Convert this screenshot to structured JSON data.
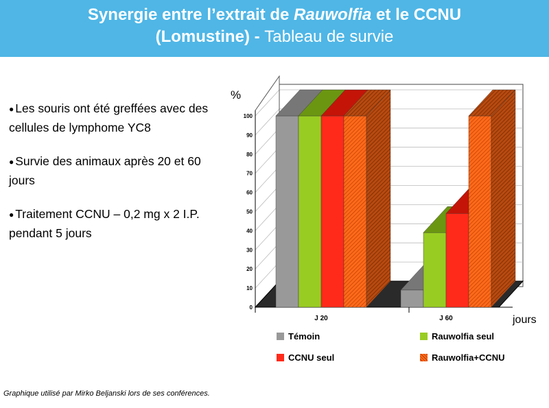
{
  "header": {
    "title_part1": "Synergie entre l’extrait de ",
    "title_italic": "Rauwolfia",
    "title_part2": " et le CCNU",
    "title_line2_bold": "(Lomustine) - ",
    "title_line2_normal": " Tableau de survie"
  },
  "bullets": [
    "Les souris ont été greffées avec des cellules de lymphome YC8",
    "Survie des animaux après 20 et 60 jours",
    "Traitement CCNU – 0,2 mg x 2 I.P. pendant 5 jours"
  ],
  "caption": "Graphique utilisé par Mirko Beljanski lors de ses conférences.",
  "colors": {
    "banner": "#4fb6e6",
    "temoin": "#999999",
    "rauwolfia_seul": "#99cc22",
    "ccnu_seul": "#ff2a1a",
    "rauwolfia_ccnu": "#ff6a1a"
  },
  "chart_data": {
    "type": "bar",
    "subtype": "3d-grouped",
    "categories": [
      "J 20",
      "J 60"
    ],
    "series": [
      {
        "name": "Témoin",
        "values": [
          100,
          9
        ]
      },
      {
        "name": "Rauwolfia seul",
        "values": [
          100,
          39
        ]
      },
      {
        "name": "CCNU seul",
        "values": [
          100,
          49
        ]
      },
      {
        "name": "Rauwolfia+CCNU",
        "values": [
          100,
          100
        ]
      }
    ],
    "ylabel": "%",
    "xlabel": "jours",
    "ylim": [
      0,
      100
    ],
    "yticks": [
      "0",
      "10",
      "20",
      "30",
      "40",
      "50",
      "60",
      "70",
      "80",
      "90",
      "100"
    ],
    "legend_position": "bottom",
    "grid": true
  }
}
